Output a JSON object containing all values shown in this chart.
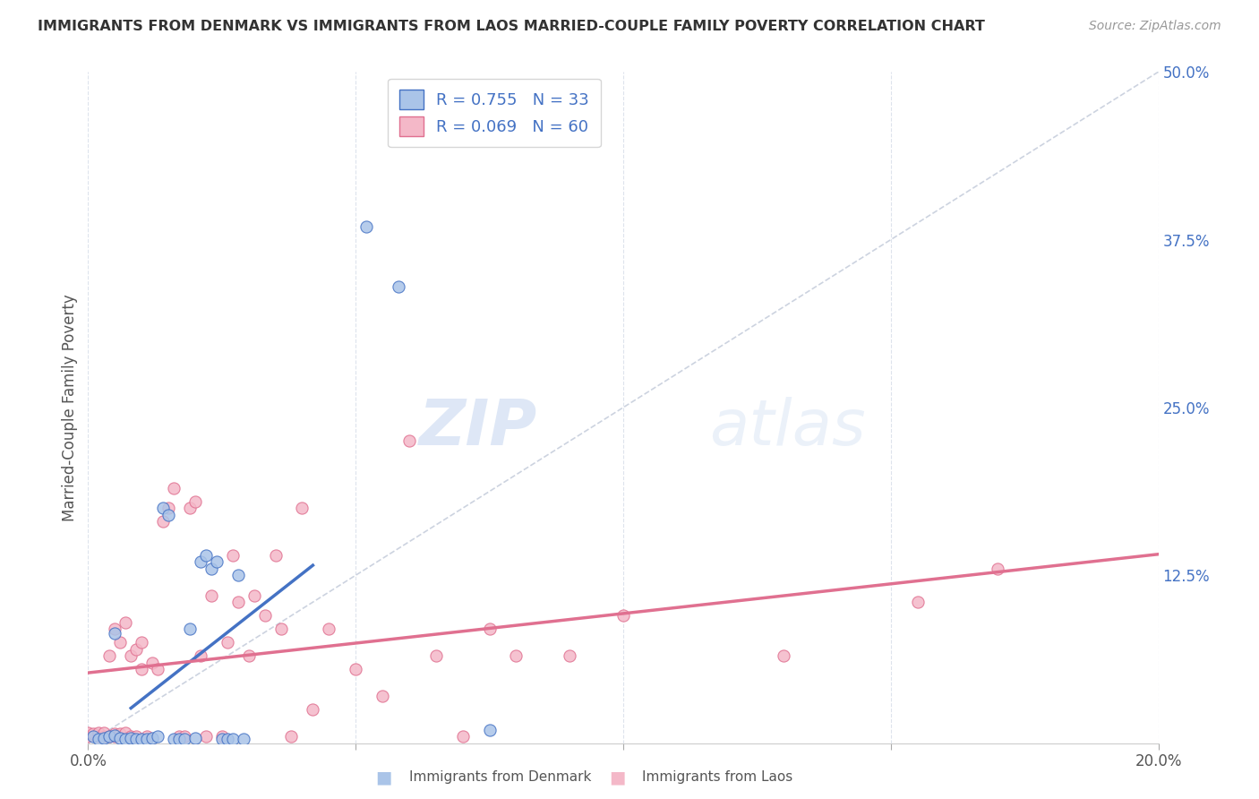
{
  "title": "IMMIGRANTS FROM DENMARK VS IMMIGRANTS FROM LAOS MARRIED-COUPLE FAMILY POVERTY CORRELATION CHART",
  "source": "Source: ZipAtlas.com",
  "ylabel": "Married-Couple Family Poverty",
  "xlim": [
    0.0,
    0.2
  ],
  "ylim": [
    0.0,
    0.5
  ],
  "yticks": [
    0.0,
    0.125,
    0.25,
    0.375,
    0.5
  ],
  "ytick_labels_right": [
    "",
    "12.5%",
    "25.0%",
    "37.5%",
    "50.0%"
  ],
  "xticks": [
    0.0,
    0.05,
    0.1,
    0.15,
    0.2
  ],
  "xtick_labels": [
    "0.0%",
    "",
    "",
    "",
    "20.0%"
  ],
  "denmark_color": "#aac4e8",
  "laos_color": "#f4b8c8",
  "denmark_line_color": "#4472c4",
  "laos_line_color": "#e07090",
  "trendline_dash_color": "#c0c8d8",
  "R_denmark": 0.755,
  "N_denmark": 33,
  "R_laos": 0.069,
  "N_laos": 60,
  "legend_label_denmark": "Immigrants from Denmark",
  "legend_label_laos": "Immigrants from Laos",
  "watermark": "ZIPatlas",
  "denmark_x": [
    0.001,
    0.002,
    0.003,
    0.004,
    0.005,
    0.005,
    0.006,
    0.007,
    0.008,
    0.009,
    0.01,
    0.011,
    0.012,
    0.013,
    0.014,
    0.015,
    0.016,
    0.017,
    0.018,
    0.019,
    0.02,
    0.021,
    0.022,
    0.023,
    0.024,
    0.025,
    0.026,
    0.027,
    0.028,
    0.029,
    0.052,
    0.058,
    0.075
  ],
  "denmark_y": [
    0.005,
    0.003,
    0.004,
    0.005,
    0.006,
    0.082,
    0.004,
    0.003,
    0.004,
    0.003,
    0.003,
    0.003,
    0.004,
    0.005,
    0.175,
    0.17,
    0.003,
    0.003,
    0.003,
    0.085,
    0.004,
    0.135,
    0.14,
    0.13,
    0.135,
    0.003,
    0.003,
    0.003,
    0.125,
    0.003,
    0.385,
    0.34,
    0.01
  ],
  "laos_x": [
    0.0,
    0.0,
    0.001,
    0.002,
    0.002,
    0.003,
    0.003,
    0.004,
    0.004,
    0.005,
    0.005,
    0.005,
    0.006,
    0.006,
    0.007,
    0.007,
    0.008,
    0.008,
    0.009,
    0.009,
    0.01,
    0.01,
    0.011,
    0.012,
    0.013,
    0.014,
    0.015,
    0.016,
    0.017,
    0.018,
    0.019,
    0.02,
    0.021,
    0.022,
    0.023,
    0.025,
    0.026,
    0.027,
    0.028,
    0.03,
    0.031,
    0.033,
    0.035,
    0.036,
    0.038,
    0.04,
    0.042,
    0.045,
    0.05,
    0.055,
    0.06,
    0.065,
    0.07,
    0.075,
    0.08,
    0.09,
    0.1,
    0.13,
    0.155,
    0.17
  ],
  "laos_y": [
    0.005,
    0.008,
    0.007,
    0.005,
    0.008,
    0.005,
    0.008,
    0.005,
    0.065,
    0.005,
    0.007,
    0.085,
    0.007,
    0.075,
    0.008,
    0.09,
    0.005,
    0.065,
    0.005,
    0.07,
    0.055,
    0.075,
    0.005,
    0.06,
    0.055,
    0.165,
    0.175,
    0.19,
    0.005,
    0.005,
    0.175,
    0.18,
    0.065,
    0.005,
    0.11,
    0.005,
    0.075,
    0.14,
    0.105,
    0.065,
    0.11,
    0.095,
    0.14,
    0.085,
    0.005,
    0.175,
    0.025,
    0.085,
    0.055,
    0.035,
    0.225,
    0.065,
    0.005,
    0.085,
    0.065,
    0.065,
    0.095,
    0.065,
    0.105,
    0.13
  ]
}
